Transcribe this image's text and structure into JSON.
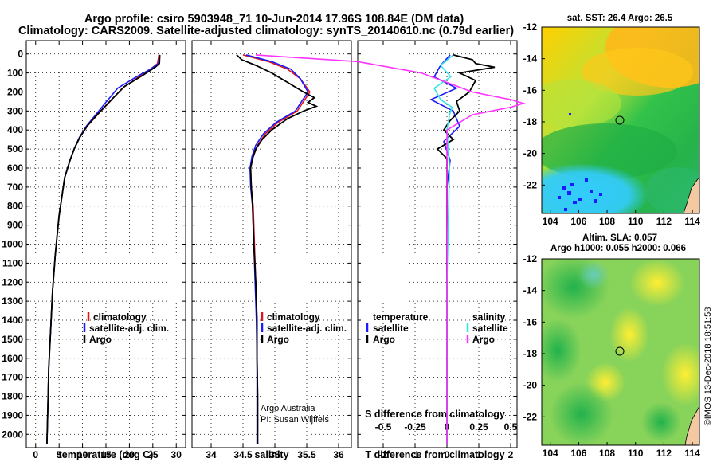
{
  "title_line1": "Argo profile: csiro 5903948_71 10-Jun-2014 17.96S 108.84E (DM data)",
  "title_line2": "Climatology: CARS2009. Satellite-adjusted climatology: synTS_20140610.nc (0.79d earlier)",
  "colors": {
    "climatology": "#e0151b",
    "satellite": "#1a1aff",
    "argo": "#000000",
    "sal_sat": "#33e6e6",
    "sal_argo": "#ff33ff",
    "sst_marker": "#1a1aff"
  },
  "depth_ticks": [
    0,
    100,
    200,
    300,
    400,
    500,
    600,
    700,
    800,
    900,
    1000,
    1100,
    1200,
    1300,
    1400,
    1500,
    1600,
    1700,
    1800,
    1900,
    2000
  ],
  "chart_data": [
    {
      "type": "line",
      "xlabel": "temperature (deg C)",
      "xlim": [
        -2,
        32
      ],
      "xticks": [
        0,
        5,
        10,
        15,
        20,
        25,
        30
      ],
      "ylim": [
        -70,
        2070
      ],
      "legend": [
        "climatology",
        "satellite-adj. clim.",
        "Argo"
      ],
      "series": [
        {
          "name": "climatology",
          "x": [
            26.3,
            26.0,
            24.5,
            22.0,
            18.5,
            15.5,
            13.2,
            11.0,
            9.4,
            8.2,
            7.3,
            6.2,
            5.6,
            5.0,
            4.6,
            4.2,
            3.6,
            3.2,
            2.8,
            2.6,
            2.4
          ],
          "depth": [
            5,
            50,
            80,
            120,
            180,
            260,
            320,
            380,
            440,
            500,
            560,
            650,
            750,
            850,
            950,
            1050,
            1250,
            1450,
            1650,
            1850,
            2050
          ]
        },
        {
          "name": "satellite-adj. clim.",
          "x": [
            26.4,
            26.2,
            24.5,
            21.5,
            17.5,
            14.8,
            12.8,
            10.8,
            9.3,
            8.2,
            7.3,
            6.2,
            5.6,
            5.0,
            4.6,
            4.2,
            3.6,
            3.2,
            2.8,
            2.6,
            2.4
          ],
          "depth": [
            5,
            50,
            80,
            120,
            180,
            260,
            320,
            380,
            440,
            500,
            560,
            650,
            750,
            850,
            950,
            1050,
            1250,
            1450,
            1650,
            1850,
            2050
          ]
        },
        {
          "name": "Argo",
          "x": [
            26.5,
            26.4,
            25.5,
            23.0,
            19.0,
            15.8,
            13.3,
            11.1,
            9.5,
            8.3,
            7.4,
            6.2,
            5.6,
            5.0,
            4.6,
            4.2,
            3.6,
            3.2,
            2.8,
            2.6,
            2.4
          ],
          "depth": [
            5,
            50,
            70,
            110,
            170,
            250,
            315,
            375,
            435,
            495,
            555,
            650,
            750,
            850,
            950,
            1050,
            1250,
            1450,
            1650,
            1850,
            2050
          ]
        }
      ]
    },
    {
      "type": "line",
      "xlabel": "salinity",
      "xlim": [
        33.7,
        36.2
      ],
      "xticks": [
        34,
        34.5,
        35,
        35.5,
        36
      ],
      "ylim": [
        -70,
        2070
      ],
      "legend": [
        "climatology",
        "satellite-adj. clim.",
        "Argo"
      ],
      "annotations": [
        "Argo Australia",
        "PI: Susan Wijffels"
      ],
      "series": [
        {
          "name": "climatology",
          "x": [
            34.5,
            34.9,
            35.2,
            35.4,
            35.55,
            35.35,
            35.05,
            34.85,
            34.73,
            34.66,
            34.62,
            34.63,
            34.66,
            34.68,
            34.7,
            34.72,
            34.72,
            34.73,
            34.73,
            34.73
          ],
          "depth": [
            5,
            40,
            80,
            130,
            200,
            300,
            360,
            420,
            480,
            540,
            600,
            700,
            800,
            1000,
            1200,
            1400,
            1600,
            1800,
            1950,
            2050
          ]
        },
        {
          "name": "satellite-adj. clim.",
          "x": [
            34.55,
            34.95,
            35.25,
            35.4,
            35.52,
            35.32,
            35.02,
            34.82,
            34.7,
            34.64,
            34.61,
            34.62,
            34.65,
            34.67,
            34.69,
            34.71,
            34.72,
            34.72,
            34.72,
            34.72
          ],
          "depth": [
            5,
            40,
            80,
            130,
            200,
            300,
            360,
            420,
            480,
            540,
            600,
            700,
            800,
            1000,
            1200,
            1400,
            1600,
            1800,
            1950,
            2050
          ]
        },
        {
          "name": "Argo",
          "x": [
            34.4,
            34.48,
            34.7,
            34.95,
            35.2,
            35.45,
            35.62,
            35.52,
            35.65,
            35.45,
            35.2,
            34.95,
            34.8,
            34.7,
            34.65,
            34.62,
            34.63,
            34.65,
            34.67,
            34.7,
            34.72,
            34.72,
            34.73,
            34.73
          ],
          "depth": [
            5,
            30,
            60,
            100,
            150,
            200,
            230,
            255,
            275,
            300,
            340,
            400,
            450,
            500,
            550,
            600,
            700,
            800,
            1000,
            1200,
            1400,
            1600,
            1800,
            2050
          ]
        }
      ]
    },
    {
      "type": "line",
      "xlabel": "T difference from climatology",
      "x2label": "S difference from climatology",
      "xlim": [
        -2.8,
        2.2
      ],
      "xticks": [
        -2,
        -1,
        0,
        1,
        2
      ],
      "x2ticks": [
        -0.5,
        -0.25,
        0,
        0.25,
        0.5
      ],
      "x2_tick_labels": [
        "-0.5",
        "-0.25",
        "0",
        "0.25",
        "0.5"
      ],
      "ylim": [
        -70,
        2070
      ],
      "legend_temperature_title": "temperature",
      "legend_salinity_title": "salinity",
      "legend_temperature": [
        "satellite",
        "Argo"
      ],
      "legend_salinity": [
        "satellite",
        "Argo"
      ],
      "series": [
        {
          "name": "temperature satellite",
          "x": [
            0.1,
            -0.2,
            -0.4,
            0.3,
            -0.5,
            0.2,
            0.4,
            -0.1,
            0.1,
            0,
            0,
            0,
            0,
            0
          ],
          "depth": [
            5,
            60,
            120,
            180,
            240,
            300,
            380,
            460,
            560,
            700,
            900,
            1200,
            1600,
            2050
          ]
        },
        {
          "name": "temperature Argo",
          "x": [
            0.2,
            0.8,
            0.9,
            1.5,
            0.4,
            0.9,
            0.7,
            0.3,
            0.4,
            0.1,
            -0.1,
            0.2,
            -0.3,
            0,
            0,
            0,
            0,
            0
          ],
          "depth": [
            5,
            30,
            50,
            70,
            100,
            140,
            200,
            250,
            300,
            350,
            400,
            450,
            500,
            550,
            620,
            800,
            1400,
            2050
          ]
        },
        {
          "name": "salinity satellite",
          "x": [
            0.05,
            -0.05,
            0.03,
            -0.1,
            -0.05,
            0.04,
            0.02,
            0,
            0.02,
            0,
            0
          ],
          "depth": [
            5,
            60,
            120,
            180,
            240,
            280,
            320,
            400,
            600,
            1200,
            2050
          ]
        },
        {
          "name": "salinity Argo",
          "x": [
            -1.5,
            -0.7,
            -0.2,
            0,
            0.2,
            0.5,
            0.6,
            0.5,
            0.2,
            0,
            0,
            0
          ],
          "depth": [
            5,
            40,
            100,
            150,
            200,
            240,
            260,
            280,
            320,
            400,
            1000,
            2050
          ]
        }
      ]
    }
  ],
  "map_sst": {
    "title": "sat. SST: 26.4 Argo: 26.5",
    "lon_ticks": [
      "104",
      "106",
      "108",
      "110",
      "112",
      "114"
    ],
    "lat_ticks": [
      "-12",
      "-14",
      "-16",
      "-18",
      "-20",
      "-22"
    ],
    "marker": {
      "lon": 108.84,
      "lat": -17.96
    }
  },
  "map_sla": {
    "title1": "Altim. SLA: 0.057",
    "title2": "Argo h1000: 0.055 h2000: 0.066",
    "lon_ticks": [
      "104",
      "106",
      "108",
      "110",
      "112",
      "114"
    ],
    "lat_ticks": [
      "-12",
      "-14",
      "-16",
      "-18",
      "-20",
      "-22"
    ],
    "marker": {
      "lon": 108.84,
      "lat": -17.96
    }
  },
  "footer": "©IMOS 13-Dec-2018 18:51:58"
}
